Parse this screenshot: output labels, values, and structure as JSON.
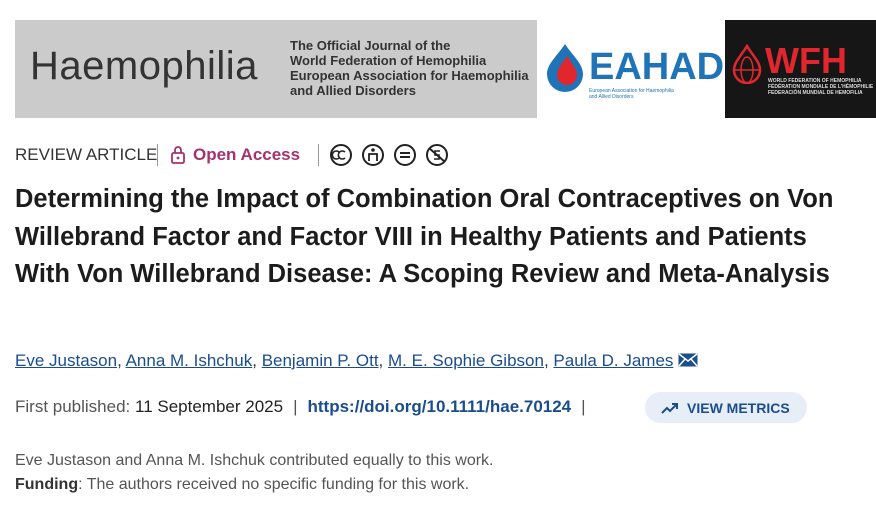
{
  "banner": {
    "journal_name": "Haemophilia",
    "tagline": [
      "The Official Journal of the",
      "World Federation of Hemophilia",
      "European Association for Haemophilia",
      "and Allied Disorders"
    ],
    "eahad": {
      "name": "EAHAD",
      "subtitle": [
        "European Association for Haemophilia",
        "and Allied Disorders"
      ]
    },
    "wfh": {
      "name": "WFH",
      "subtitle": [
        "WORLD FEDERATION OF HEMOPHILIA",
        "FÉDÉRATION MONDIALE DE L'HÉMOPHILIE",
        "FEDERACIÓN MUNDIAL DE HEMOFILIA"
      ]
    }
  },
  "article": {
    "type": "REVIEW ARTICLE",
    "access": "Open Access",
    "title": "Determining the Impact of Combination Oral Contraceptives on Von Willebrand Factor and Factor VIII in Healthy Patients and Patients With Von Willebrand Disease: A Scoping Review and Meta-Analysis",
    "authors": [
      "Eve Justason",
      "Anna M. Ishchuk",
      "Benjamin P. Ott",
      "M. E. Sophie Gibson",
      "Paula D. James"
    ],
    "author_separator": ",",
    "published_label": "First published:",
    "published_date": "11 September 2025",
    "meta_separator": "|",
    "doi": "https://doi.org/10.1111/hae.70124",
    "metrics_button": "VIEW METRICS",
    "note": "Eve Justason and Anna M. Ishchuk contributed equally to this work.",
    "funding_label": "Funding",
    "funding_text": ": The authors received no specific funding for this work."
  }
}
